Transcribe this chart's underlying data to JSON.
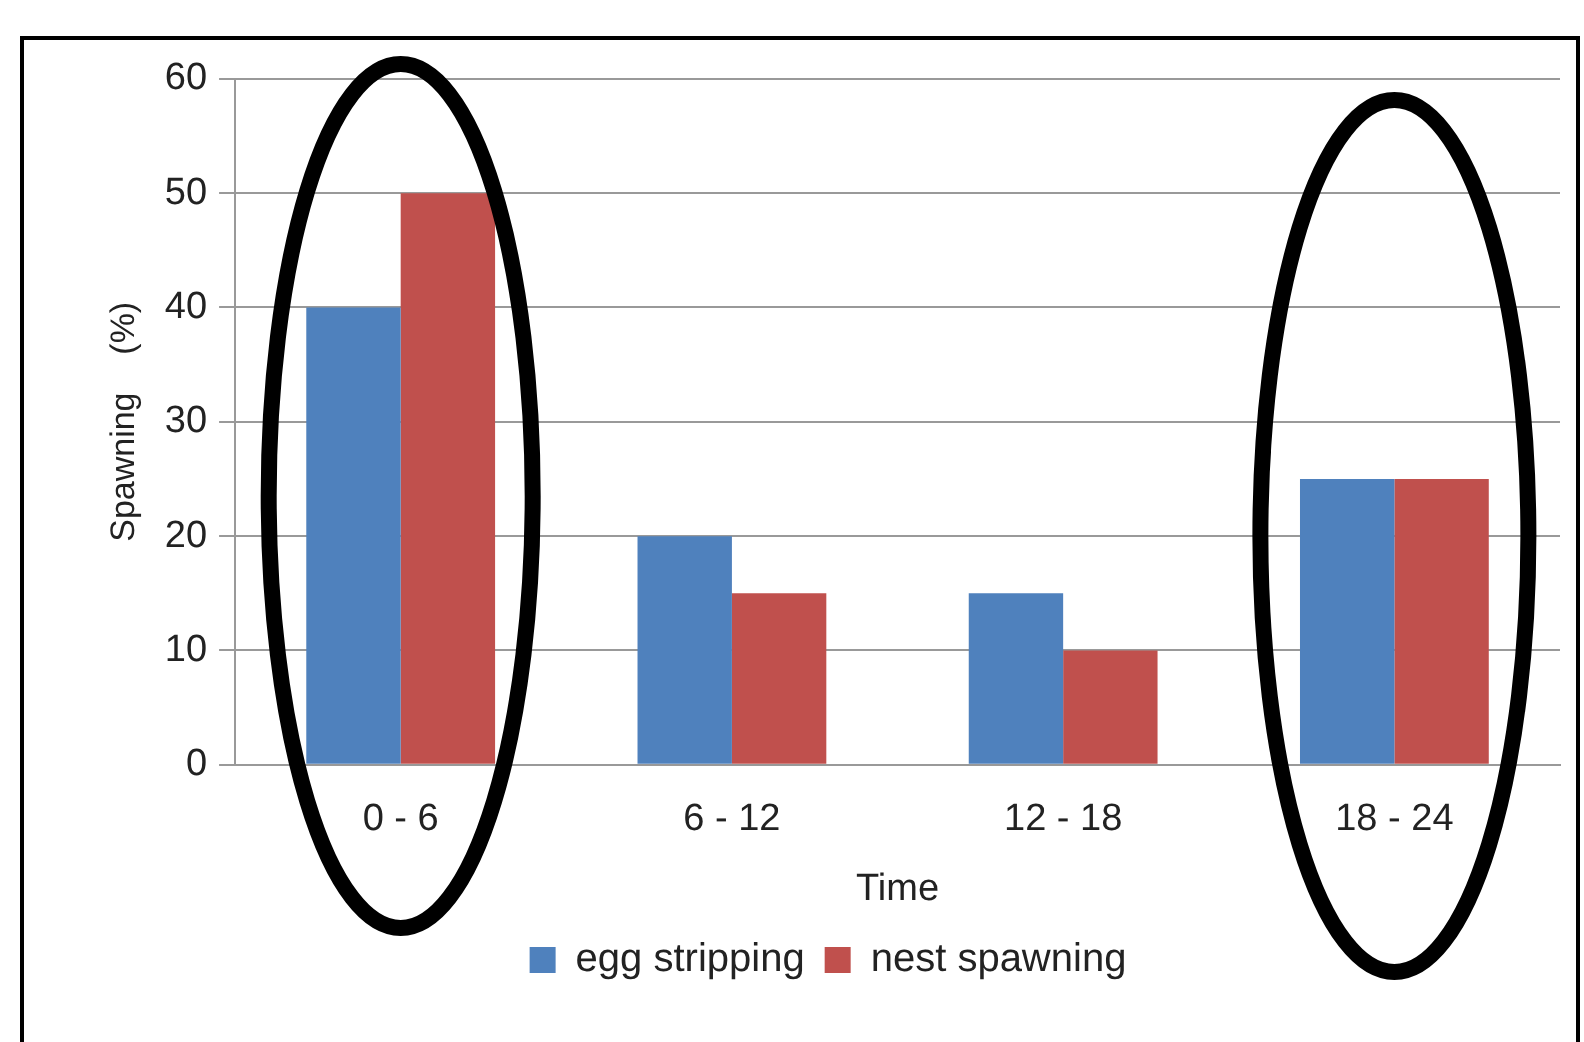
{
  "chart_data": {
    "type": "bar",
    "xlabel": "Time",
    "ylabel": "Spawning    (%)",
    "categories": [
      "0 - 6",
      "6 - 12",
      "12 - 18",
      "18 - 24"
    ],
    "series": [
      {
        "name": "egg stripping",
        "color": "#4f81bd",
        "values": [
          40,
          20,
          15,
          25
        ]
      },
      {
        "name": "nest spawning",
        "color": "#c0504d",
        "values": [
          50,
          15,
          10,
          25
        ]
      }
    ],
    "ylim": [
      0,
      60
    ],
    "yticks": [
      0,
      10,
      20,
      30,
      40,
      50,
      60
    ],
    "grid": "y",
    "legend": "bottom"
  }
}
